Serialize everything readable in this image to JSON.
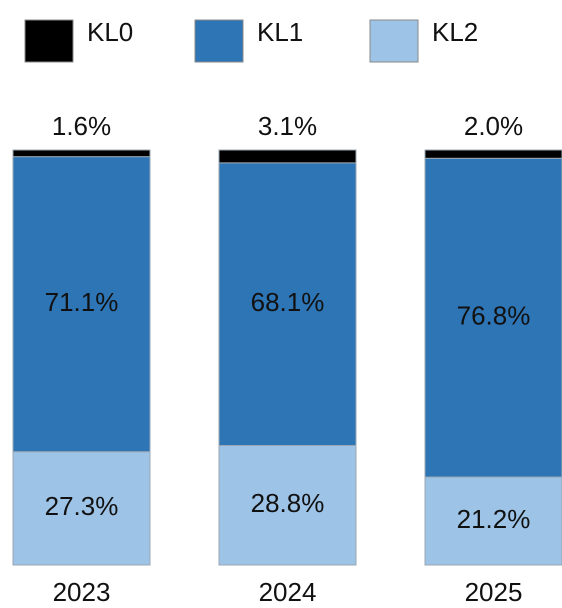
{
  "chart_data": {
    "type": "stacked_bar",
    "categories": [
      "2023",
      "2024",
      "2025"
    ],
    "series": [
      {
        "name": "KL0",
        "color": "#000000",
        "values": [
          1.6,
          3.1,
          2.0
        ],
        "value_labels": [
          "1.6%",
          "3.1%",
          "2.0%"
        ]
      },
      {
        "name": "KL1",
        "color": "#2e75b6",
        "values": [
          71.1,
          68.1,
          76.8
        ],
        "value_labels": [
          "71.1%",
          "68.1%",
          "76.8%"
        ]
      },
      {
        "name": "KL2",
        "color": "#9dc3e6",
        "values": [
          27.3,
          28.8,
          21.2
        ],
        "value_labels": [
          "27.3%",
          "28.8%",
          "21.2%"
        ]
      }
    ]
  }
}
